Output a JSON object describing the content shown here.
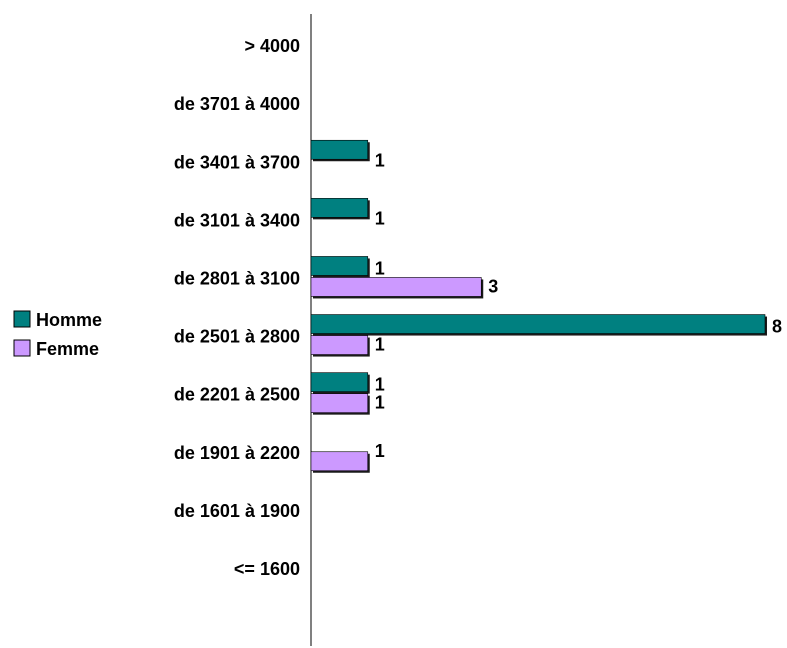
{
  "chart_data": {
    "type": "bar",
    "orientation": "horizontal",
    "categories": [
      "> 4000",
      "de 3701 à 4000",
      "de 3401 à 3700",
      "de 3101 à 3400",
      "de 2801 à 3100",
      "de 2501 à 2800",
      "de 2201 à 2500",
      "de 1901 à 2200",
      "de 1601 à 1900",
      "<= 1600"
    ],
    "series": [
      {
        "name": "Homme",
        "color": "#008080",
        "values": [
          0,
          0,
          1,
          1,
          1,
          8,
          1,
          0,
          0,
          0
        ]
      },
      {
        "name": "Femme",
        "color": "#cc99ff",
        "values": [
          0,
          0,
          0,
          0,
          3,
          1,
          1,
          1,
          0,
          0
        ]
      }
    ],
    "title": "",
    "xlabel": "",
    "ylabel": "",
    "xlim": [
      0,
      8
    ],
    "grid": false,
    "legend": "left",
    "data_labels": true
  }
}
